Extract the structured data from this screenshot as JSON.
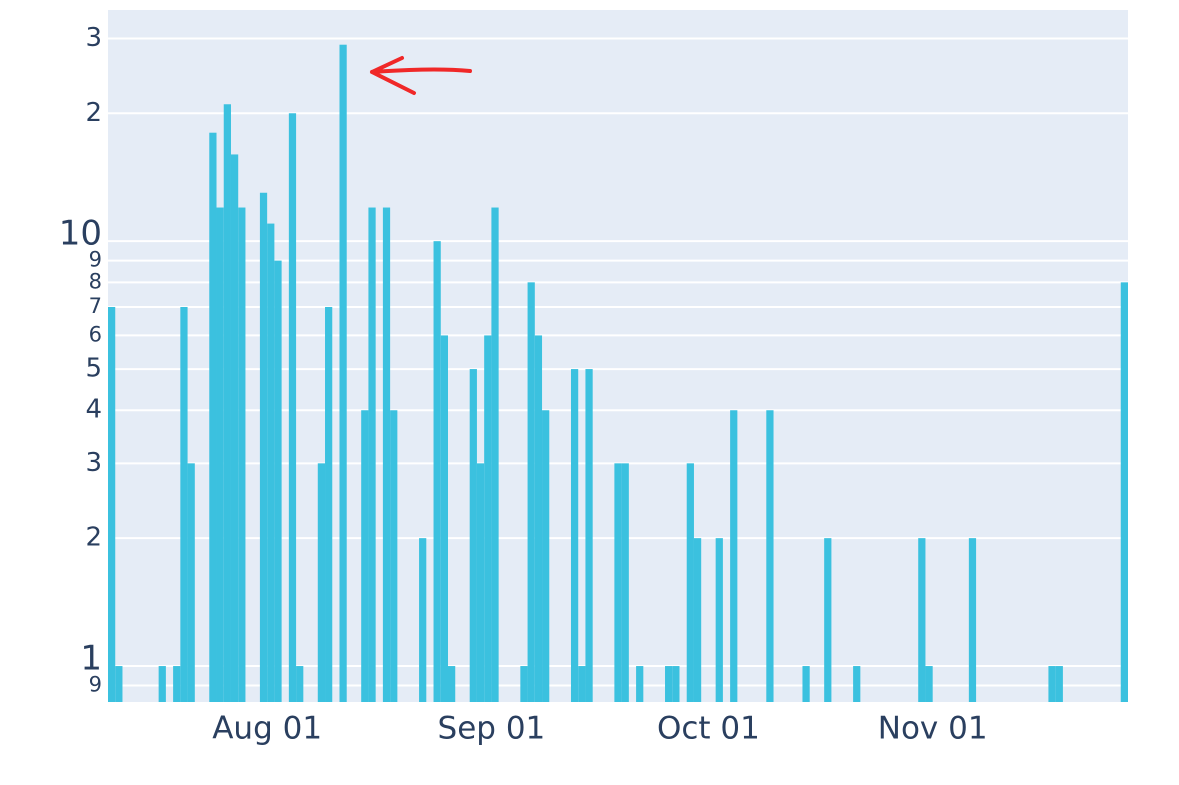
{
  "chart_data": {
    "type": "bar",
    "color": "#3bc1df",
    "log_y": true,
    "grid": true,
    "x": [
      "Jul 10",
      "Jul 11",
      "Jul 17",
      "Jul 19",
      "Jul 20",
      "Jul 21",
      "Jul 24",
      "Jul 25",
      "Jul 26",
      "Jul 27",
      "Jul 28",
      "Jul 31",
      "Aug 01",
      "Aug 02",
      "Aug 04",
      "Aug 05",
      "Aug 08",
      "Aug 09",
      "Aug 11",
      "Aug 14",
      "Aug 15",
      "Aug 17",
      "Aug 18",
      "Aug 22",
      "Aug 24",
      "Aug 25",
      "Aug 26",
      "Aug 29",
      "Aug 30",
      "Aug 31",
      "Sep 01",
      "Sep 05",
      "Sep 06",
      "Sep 07",
      "Sep 08",
      "Sep 12",
      "Sep 13",
      "Sep 14",
      "Sep 18",
      "Sep 19",
      "Sep 21",
      "Sep 25",
      "Sep 26",
      "Sep 28",
      "Sep 29",
      "Oct 02",
      "Oct 04",
      "Oct 09",
      "Oct 14",
      "Oct 17",
      "Oct 21",
      "Oct 30",
      "Oct 31",
      "Nov 06",
      "Nov 17",
      "Nov 18",
      "Nov 27"
    ],
    "values": [
      7,
      1,
      1,
      1,
      7,
      3,
      18,
      12,
      21,
      16,
      12,
      13,
      11,
      9,
      20,
      1,
      3,
      7,
      29,
      4,
      12,
      12,
      4,
      2,
      10,
      6,
      1,
      5,
      3,
      6,
      12,
      1,
      8,
      6,
      4,
      5,
      1,
      5,
      3,
      3,
      1,
      1,
      1,
      3,
      2,
      2,
      4,
      4,
      1,
      2,
      1,
      2,
      1,
      2,
      1,
      1,
      8
    ],
    "xlim": [
      "Jul 10",
      "Nov 28"
    ],
    "xticks": [
      "Aug 01",
      "Sep 01",
      "Oct 01",
      "Nov 01"
    ],
    "ylim": [
      0.823,
      35
    ],
    "yticks": [
      {
        "value": 0.9,
        "label": "9"
      },
      1,
      2,
      3,
      4,
      5,
      6,
      7,
      8,
      9,
      10,
      {
        "value": 20,
        "label": "2"
      },
      {
        "value": 30,
        "label": "3"
      }
    ]
  }
}
